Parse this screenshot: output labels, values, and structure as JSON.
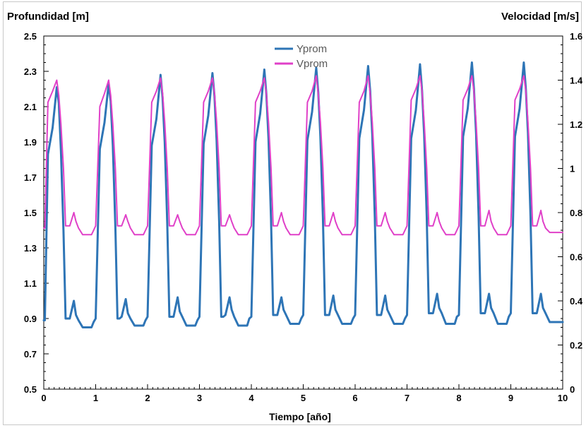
{
  "chart_data": {
    "type": "line",
    "left_axis_title": "Profundidad [m]",
    "right_axis_title": "Velocidad [m/s]",
    "xlabel": "Tiempo [año]",
    "xlim": [
      0,
      10
    ],
    "x_ticks": [
      "0",
      "1",
      "2",
      "3",
      "4",
      "5",
      "6",
      "7",
      "8",
      "9",
      "10"
    ],
    "ylim_left": [
      0.5,
      2.5
    ],
    "y_left_ticks": [
      "0.5",
      "0.7",
      "0.9",
      "1.1",
      "1.3",
      "1.5",
      "1.7",
      "1.9",
      "2.1",
      "2.3",
      "2.5"
    ],
    "ylim_right": [
      0,
      1.6
    ],
    "y_right_ticks": [
      "0",
      "0.2",
      "0.4",
      "0.6",
      "0.8",
      "1",
      "1.2",
      "1.4",
      "1.6"
    ],
    "grid": false,
    "legend_position": "top-center",
    "series": [
      {
        "name": "Yprom",
        "axis": "left",
        "color": "#2e75b6",
        "x": [
          0,
          0.02,
          0.08,
          0.17,
          0.25,
          0.29,
          0.33,
          0.38,
          0.42,
          0.46,
          0.5,
          0.58,
          0.62,
          0.67,
          0.75,
          0.83,
          0.92,
          0.96,
          1.0,
          1.08,
          1.17,
          1.25,
          1.29,
          1.33,
          1.38,
          1.42,
          1.46,
          1.5,
          1.58,
          1.62,
          1.67,
          1.75,
          1.83,
          1.92,
          1.96,
          2.0,
          2.08,
          2.17,
          2.25,
          2.29,
          2.33,
          2.38,
          2.42,
          2.46,
          2.5,
          2.58,
          2.62,
          2.67,
          2.75,
          2.83,
          2.92,
          2.96,
          3.0,
          3.08,
          3.17,
          3.25,
          3.29,
          3.33,
          3.38,
          3.42,
          3.46,
          3.5,
          3.58,
          3.62,
          3.67,
          3.75,
          3.83,
          3.92,
          3.96,
          4.0,
          4.08,
          4.17,
          4.25,
          4.29,
          4.33,
          4.38,
          4.42,
          4.46,
          4.5,
          4.58,
          4.62,
          4.67,
          4.75,
          4.83,
          4.92,
          4.96,
          5.0,
          5.08,
          5.17,
          5.25,
          5.29,
          5.33,
          5.38,
          5.42,
          5.46,
          5.5,
          5.58,
          5.62,
          5.67,
          5.75,
          5.83,
          5.92,
          5.96,
          6.0,
          6.08,
          6.17,
          6.25,
          6.29,
          6.33,
          6.38,
          6.42,
          6.46,
          6.5,
          6.58,
          6.62,
          6.67,
          6.75,
          6.83,
          6.92,
          6.96,
          7.0,
          7.08,
          7.17,
          7.25,
          7.29,
          7.33,
          7.38,
          7.42,
          7.46,
          7.5,
          7.58,
          7.62,
          7.67,
          7.75,
          7.83,
          7.92,
          7.96,
          8.0,
          8.08,
          8.17,
          8.25,
          8.29,
          8.33,
          8.38,
          8.42,
          8.46,
          8.5,
          8.58,
          8.62,
          8.67,
          8.75,
          8.83,
          8.92,
          8.96,
          9.0,
          9.08,
          9.17,
          9.25,
          9.29,
          9.33,
          9.38,
          9.42,
          9.46,
          9.5,
          9.58,
          9.62,
          9.67,
          9.75,
          9.83,
          9.92,
          10.0
        ],
        "y": [
          0.89,
          0.89,
          1.83,
          1.98,
          2.21,
          2.12,
          1.85,
          1.4,
          0.9,
          0.9,
          0.9,
          1.0,
          0.92,
          0.89,
          0.85,
          0.85,
          0.85,
          0.88,
          0.9,
          1.86,
          2.01,
          2.23,
          2.13,
          1.88,
          1.42,
          0.9,
          0.9,
          0.91,
          1.01,
          0.93,
          0.9,
          0.86,
          0.86,
          0.86,
          0.89,
          0.91,
          1.88,
          2.03,
          2.28,
          2.15,
          1.9,
          1.44,
          0.91,
          0.91,
          0.91,
          1.02,
          0.94,
          0.91,
          0.86,
          0.86,
          0.86,
          0.89,
          0.91,
          1.89,
          2.05,
          2.29,
          2.16,
          1.91,
          1.45,
          0.91,
          0.91,
          0.92,
          1.02,
          0.95,
          0.91,
          0.86,
          0.86,
          0.86,
          0.9,
          0.91,
          1.9,
          2.06,
          2.31,
          2.17,
          1.92,
          1.46,
          0.92,
          0.92,
          0.92,
          1.02,
          0.95,
          0.92,
          0.87,
          0.87,
          0.87,
          0.9,
          0.92,
          1.91,
          2.07,
          2.32,
          2.18,
          1.93,
          1.47,
          0.92,
          0.92,
          0.92,
          1.03,
          0.95,
          0.92,
          0.87,
          0.87,
          0.87,
          0.9,
          0.92,
          1.92,
          2.08,
          2.33,
          2.19,
          1.94,
          1.47,
          0.92,
          0.92,
          0.92,
          1.03,
          0.95,
          0.92,
          0.87,
          0.87,
          0.87,
          0.9,
          0.92,
          1.92,
          2.08,
          2.34,
          2.19,
          1.94,
          1.48,
          0.93,
          0.93,
          0.93,
          1.04,
          0.96,
          0.93,
          0.87,
          0.87,
          0.87,
          0.91,
          0.92,
          1.93,
          2.09,
          2.35,
          2.2,
          1.95,
          1.48,
          0.93,
          0.93,
          0.93,
          1.04,
          0.96,
          0.93,
          0.87,
          0.87,
          0.87,
          0.91,
          0.93,
          1.93,
          2.09,
          2.35,
          2.2,
          1.95,
          1.48,
          0.93,
          0.93,
          0.93,
          1.04,
          0.96,
          0.93,
          0.88,
          0.88,
          0.88,
          0.88
        ]
      },
      {
        "name": "Vprom",
        "axis": "right",
        "color": "#e040c8",
        "x": [
          0,
          0.02,
          0.08,
          0.17,
          0.25,
          0.29,
          0.33,
          0.38,
          0.42,
          0.46,
          0.5,
          0.58,
          0.62,
          0.67,
          0.75,
          0.83,
          0.92,
          0.96,
          1.0,
          1.08,
          1.17,
          1.25,
          1.29,
          1.33,
          1.38,
          1.42,
          1.46,
          1.5,
          1.58,
          1.62,
          1.67,
          1.75,
          1.83,
          1.92,
          1.96,
          2.0,
          2.08,
          2.17,
          2.25,
          2.29,
          2.33,
          2.38,
          2.42,
          2.46,
          2.5,
          2.58,
          2.62,
          2.67,
          2.75,
          2.83,
          2.92,
          2.96,
          3.0,
          3.08,
          3.17,
          3.25,
          3.29,
          3.33,
          3.38,
          3.42,
          3.46,
          3.5,
          3.58,
          3.62,
          3.67,
          3.75,
          3.83,
          3.92,
          3.96,
          4.0,
          4.08,
          4.17,
          4.25,
          4.29,
          4.33,
          4.38,
          4.42,
          4.46,
          4.5,
          4.58,
          4.62,
          4.67,
          4.75,
          4.83,
          4.92,
          4.96,
          5.0,
          5.08,
          5.17,
          5.25,
          5.29,
          5.33,
          5.38,
          5.42,
          5.46,
          5.5,
          5.58,
          5.62,
          5.67,
          5.75,
          5.83,
          5.92,
          5.96,
          6.0,
          6.08,
          6.17,
          6.25,
          6.29,
          6.33,
          6.38,
          6.42,
          6.46,
          6.5,
          6.58,
          6.62,
          6.67,
          6.75,
          6.83,
          6.92,
          6.96,
          7.0,
          7.08,
          7.17,
          7.25,
          7.29,
          7.33,
          7.38,
          7.42,
          7.46,
          7.5,
          7.58,
          7.62,
          7.67,
          7.75,
          7.83,
          7.92,
          7.96,
          8.0,
          8.08,
          8.17,
          8.25,
          8.29,
          8.33,
          8.38,
          8.42,
          8.46,
          8.5,
          8.58,
          8.62,
          8.67,
          8.75,
          8.83,
          8.92,
          8.96,
          9.0,
          9.08,
          9.17,
          9.25,
          9.29,
          9.33,
          9.38,
          9.42,
          9.46,
          9.5,
          9.58,
          9.62,
          9.67,
          9.75,
          9.83,
          9.92,
          10.0
        ],
        "y": [
          0.73,
          0.73,
          1.3,
          1.35,
          1.4,
          1.33,
          1.2,
          1.0,
          0.74,
          0.74,
          0.74,
          0.8,
          0.76,
          0.73,
          0.7,
          0.7,
          0.7,
          0.72,
          0.74,
          1.28,
          1.34,
          1.4,
          1.33,
          1.2,
          1.0,
          0.74,
          0.74,
          0.74,
          0.79,
          0.76,
          0.73,
          0.7,
          0.7,
          0.7,
          0.72,
          0.74,
          1.3,
          1.35,
          1.41,
          1.34,
          1.21,
          1.0,
          0.74,
          0.74,
          0.74,
          0.79,
          0.76,
          0.73,
          0.7,
          0.7,
          0.7,
          0.72,
          0.74,
          1.3,
          1.35,
          1.41,
          1.34,
          1.21,
          1.0,
          0.74,
          0.74,
          0.74,
          0.79,
          0.76,
          0.73,
          0.7,
          0.7,
          0.7,
          0.72,
          0.74,
          1.3,
          1.35,
          1.41,
          1.34,
          1.21,
          1.0,
          0.74,
          0.74,
          0.74,
          0.8,
          0.76,
          0.73,
          0.7,
          0.7,
          0.7,
          0.72,
          0.74,
          1.3,
          1.35,
          1.42,
          1.34,
          1.21,
          1.0,
          0.74,
          0.74,
          0.74,
          0.8,
          0.76,
          0.73,
          0.7,
          0.7,
          0.7,
          0.72,
          0.74,
          1.3,
          1.35,
          1.42,
          1.34,
          1.21,
          1.0,
          0.74,
          0.74,
          0.74,
          0.8,
          0.76,
          0.73,
          0.7,
          0.7,
          0.7,
          0.72,
          0.74,
          1.31,
          1.36,
          1.42,
          1.35,
          1.21,
          1.0,
          0.74,
          0.74,
          0.74,
          0.8,
          0.76,
          0.73,
          0.7,
          0.7,
          0.7,
          0.72,
          0.74,
          1.31,
          1.36,
          1.42,
          1.35,
          1.21,
          1.0,
          0.74,
          0.74,
          0.74,
          0.81,
          0.76,
          0.73,
          0.7,
          0.7,
          0.7,
          0.72,
          0.74,
          1.31,
          1.36,
          1.42,
          1.35,
          1.21,
          1.0,
          0.74,
          0.74,
          0.74,
          0.81,
          0.76,
          0.73,
          0.71,
          0.71,
          0.71,
          0.71
        ]
      }
    ]
  }
}
